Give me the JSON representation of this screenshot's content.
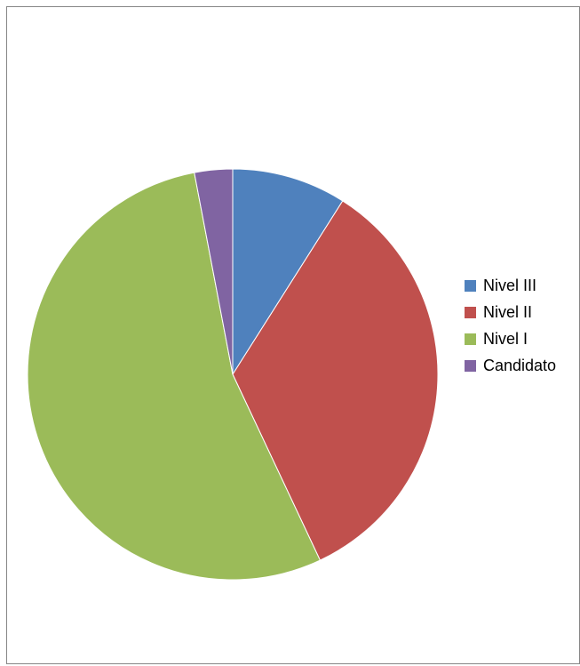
{
  "chart_data": {
    "type": "pie",
    "title": "",
    "start_angle_deg": 90,
    "direction": "clockwise",
    "legend_position": "right",
    "slices": [
      {
        "name": "Nivel III",
        "value": 9,
        "color": "#4F81BD"
      },
      {
        "name": "Nivel II",
        "value": 34,
        "color": "#C0504D"
      },
      {
        "name": "Nivel I",
        "value": 54,
        "color": "#9BBB59"
      },
      {
        "name": "Candidato",
        "value": 3,
        "color": "#8064A2"
      }
    ]
  }
}
